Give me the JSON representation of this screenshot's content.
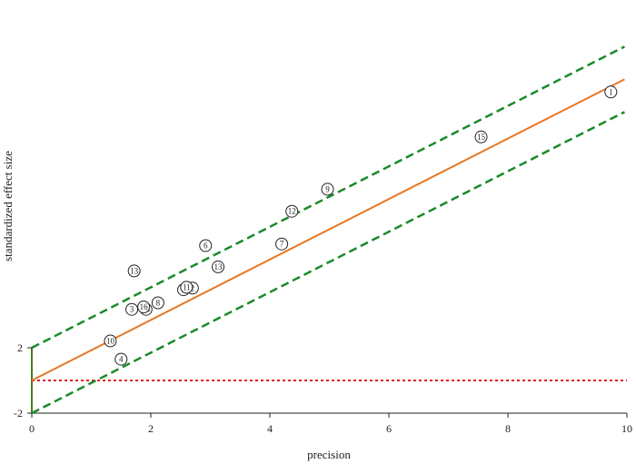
{
  "chart_data": {
    "type": "scatter",
    "title": "",
    "xlabel": "precision",
    "ylabel": "standardized effect size",
    "xlim": [
      0,
      10
    ],
    "ylim": [
      -2,
      2
    ],
    "x_ticks": [
      "0",
      "2",
      "4",
      "6",
      "8",
      "10"
    ],
    "y_ticks": [
      "-2",
      "2"
    ],
    "points": [
      {
        "label": "1",
        "x": 9.73,
        "y": 17.65
      },
      {
        "label": "2",
        "x": 2.7,
        "y": 5.65
      },
      {
        "label": "3",
        "x": 1.68,
        "y": 4.35
      },
      {
        "label": "4",
        "x": 1.5,
        "y": 1.3
      },
      {
        "label": "5",
        "x": 2.55,
        "y": 5.55
      },
      {
        "label": "6",
        "x": 2.92,
        "y": 8.25
      },
      {
        "label": "7",
        "x": 4.2,
        "y": 8.35
      },
      {
        "label": "8",
        "x": 2.12,
        "y": 4.75
      },
      {
        "label": "9",
        "x": 4.97,
        "y": 11.7
      },
      {
        "label": "10",
        "x": 1.32,
        "y": 2.42
      },
      {
        "label": "11",
        "x": 2.6,
        "y": 5.7
      },
      {
        "label": "12",
        "x": 4.37,
        "y": 10.35
      },
      {
        "label": "13",
        "x": 1.72,
        "y": 6.7
      },
      {
        "label": "13",
        "x": 3.13,
        "y": 6.95
      },
      {
        "label": "14",
        "x": 1.92,
        "y": 4.35
      },
      {
        "label": "15",
        "x": 7.55,
        "y": 14.9
      },
      {
        "label": "16",
        "x": 1.88,
        "y": 4.5
      }
    ],
    "regression_line": {
      "intercept": 0.0,
      "slope": 1.85,
      "color": "#e87722"
    },
    "confidence_band": {
      "offset": 2,
      "color": "#1a8a2a"
    },
    "reference_line": {
      "y": 0,
      "color": "#e0201a"
    },
    "y_axis_color": "#4a7a1e"
  }
}
